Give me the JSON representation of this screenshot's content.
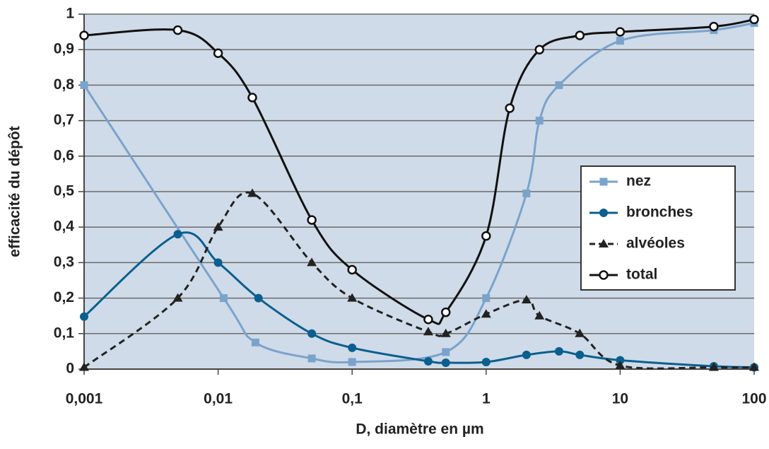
{
  "chart_data": {
    "type": "line",
    "x_label": "D, diamètre en µm",
    "y_label": "efficacité du dépôt",
    "x_scale": "log",
    "xlim": [
      0.001,
      100
    ],
    "xticks": [
      {
        "value": 0.001,
        "label": "0,001"
      },
      {
        "value": 0.01,
        "label": "0,01"
      },
      {
        "value": 0.1,
        "label": "0,1"
      },
      1,
      10,
      100
    ],
    "ylim": [
      0,
      1
    ],
    "yticks": [
      0,
      {
        "value": 0.1,
        "label": "0,1"
      },
      {
        "value": 0.2,
        "label": "0,2"
      },
      {
        "value": 0.3,
        "label": "0,3"
      },
      {
        "value": 0.4,
        "label": "0,4"
      },
      {
        "value": 0.5,
        "label": "0,5"
      },
      {
        "value": 0.6,
        "label": "0,6"
      },
      {
        "value": 0.7,
        "label": "0,7"
      },
      {
        "value": 0.8,
        "label": "0,8"
      },
      {
        "value": 0.9,
        "label": "0,9"
      },
      1
    ],
    "grid": true,
    "legend": "right",
    "series": [
      {
        "name": "nez",
        "color": "#7aa3cc",
        "marker": "square",
        "dashed": false,
        "x": [
          0.001,
          0.011,
          0.019,
          0.05,
          0.1,
          0.5,
          1,
          2,
          2.5,
          3.5,
          10,
          50,
          100
        ],
        "values": [
          0.8,
          0.2,
          0.075,
          0.03,
          0.02,
          0.048,
          0.2,
          0.495,
          0.7,
          0.8,
          0.925,
          0.955,
          0.975
        ]
      },
      {
        "name": "bronches",
        "color": "#0b5f8f",
        "marker": "circle",
        "dashed": false,
        "x": [
          0.001,
          0.005,
          0.01,
          0.02,
          0.05,
          0.1,
          0.37,
          0.5,
          1,
          2,
          3.5,
          5,
          10,
          50,
          100
        ],
        "values": [
          0.148,
          0.38,
          0.3,
          0.2,
          0.1,
          0.06,
          0.022,
          0.018,
          0.02,
          0.04,
          0.05,
          0.04,
          0.025,
          0.008,
          0.005
        ]
      },
      {
        "name": "alvéoles",
        "color": "#222222",
        "marker": "triangle",
        "dashed": true,
        "x": [
          0.001,
          0.005,
          0.01,
          0.018,
          0.05,
          0.1,
          0.37,
          0.5,
          1,
          2,
          2.5,
          5,
          10,
          50,
          100
        ],
        "values": [
          0.005,
          0.2,
          0.4,
          0.495,
          0.3,
          0.2,
          0.105,
          0.1,
          0.155,
          0.195,
          0.15,
          0.1,
          0.01,
          0.005,
          0.005
        ]
      },
      {
        "name": "total",
        "color": "#111111",
        "marker": "open-circle",
        "dashed": false,
        "x": [
          0.001,
          0.005,
          0.01,
          0.018,
          0.05,
          0.1,
          0.37,
          0.5,
          1,
          1.5,
          2.5,
          5,
          10,
          50,
          100
        ],
        "values": [
          0.94,
          0.955,
          0.89,
          0.765,
          0.42,
          0.28,
          0.14,
          0.16,
          0.375,
          0.735,
          0.9,
          0.94,
          0.95,
          0.965,
          0.985
        ]
      }
    ]
  }
}
